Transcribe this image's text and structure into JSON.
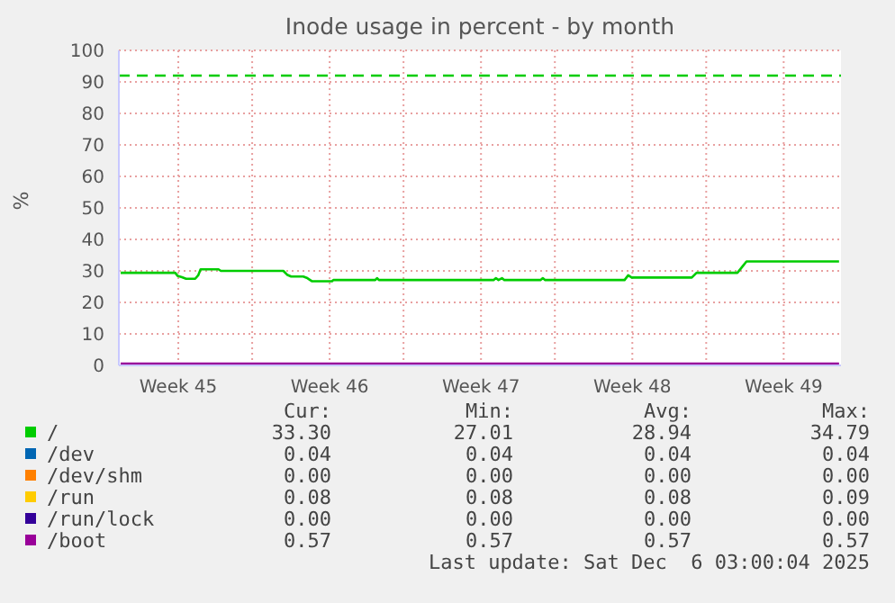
{
  "chart_data": {
    "type": "line",
    "title": "Inode usage in percent - by month",
    "ylabel": "%",
    "xlim": [
      "2025-11-02T20:00",
      "2025-12-06T05:36"
    ],
    "xticks": [
      {
        "value": "2025-11-05T14:00",
        "label": "Week 45"
      },
      {
        "value": "2025-11-09T00:00",
        "label": null
      },
      {
        "value": "2025-11-12T14:00",
        "label": "Week 46"
      },
      {
        "value": "2025-11-16T00:00",
        "label": null
      },
      {
        "value": "2025-11-19T14:00",
        "label": "Week 47"
      },
      {
        "value": "2025-11-23T00:00",
        "label": null
      },
      {
        "value": "2025-11-26T14:00",
        "label": "Week 48"
      },
      {
        "value": "2025-11-30T00:00",
        "label": null
      },
      {
        "value": "2025-12-03T14:00",
        "label": "Week 49"
      }
    ],
    "ylim": [
      0,
      100
    ],
    "yticks": [
      0,
      10,
      20,
      30,
      40,
      50,
      60,
      70,
      80,
      90,
      100
    ],
    "grid": true,
    "legend": "bottom",
    "marker": "none",
    "line_style": "solid",
    "ref_lines": [
      {
        "axis": "y",
        "value": 92,
        "color": "#00cc00",
        "line_style": "dashed"
      }
    ],
    "series": [
      {
        "name": "/",
        "color": "#00cc00",
        "x": [
          "2025-11-02T22:00",
          "2025-11-05T10:36",
          "2025-11-05T13:17",
          "2025-11-05T18:05",
          "2025-11-05T22:38",
          "2025-11-06T08:43",
          "2025-11-06T12:05",
          "2025-11-06T14:43",
          "2025-11-07T10:38",
          "2025-11-07T13:17",
          "2025-11-10T10:38",
          "2025-11-10T14:43",
          "2025-11-10T19:17",
          "2025-11-11T08:43",
          "2025-11-11T13:17",
          "2025-11-11T18:34",
          "2025-11-12T16:38",
          "2025-11-12T18:05",
          "2025-11-14T16:38",
          "2025-11-14T18:34",
          "2025-11-14T20:43",
          "2025-11-20T03:55",
          "2025-11-20T06:34",
          "2025-11-20T09:26",
          "2025-11-20T13:17",
          "2025-11-20T15:55",
          "2025-11-22T08:00",
          "2025-11-22T10:38",
          "2025-11-22T13:17",
          "2025-11-26T05:22",
          "2025-11-26T09:26",
          "2025-11-26T13:17",
          "2025-11-29T08:00",
          "2025-11-29T13:17",
          "2025-12-01T10:38",
          "2025-12-01T15:26",
          "2025-12-01T20:43",
          "2025-12-06T03:26"
        ],
        "values": [
          29.4,
          29.4,
          28.4,
          28.0,
          27.5,
          27.5,
          28.6,
          30.5,
          30.5,
          30.0,
          30.0,
          28.8,
          28.2,
          28.2,
          27.7,
          26.7,
          26.7,
          27.1,
          27.1,
          27.7,
          27.1,
          27.1,
          27.7,
          27.1,
          27.7,
          27.1,
          27.1,
          27.7,
          27.1,
          27.1,
          28.6,
          27.9,
          27.9,
          29.4,
          29.4,
          31.1,
          33.0,
          33.0
        ]
      },
      {
        "name": "/dev",
        "color": "#0066b3"
      },
      {
        "name": "/dev/shm",
        "color": "#ff8000"
      },
      {
        "name": "/run",
        "color": "#ffcc00"
      },
      {
        "name": "/run/lock",
        "color": "#330099"
      },
      {
        "name": "/boot",
        "color": "#990099",
        "x": [
          "2025-11-02T22:00",
          "2025-12-06T03:26"
        ],
        "values": [
          0.57,
          0.57
        ]
      }
    ],
    "annotations": [
      "Cur:",
      "Min:",
      "Avg:",
      "Max:",
      "33.30",
      "27.01",
      "28.94",
      "34.79",
      "0.04",
      "0.04",
      "0.04",
      "0.04",
      "0.00",
      "0.00",
      "0.00",
      "0.00",
      "0.08",
      "0.08",
      "0.08",
      "0.09",
      "0.00",
      "0.00",
      "0.00",
      "0.00",
      "0.57",
      "0.57",
      "0.57",
      "0.57",
      "Last update: Sat Dec  6 03:00:04 2025"
    ]
  }
}
